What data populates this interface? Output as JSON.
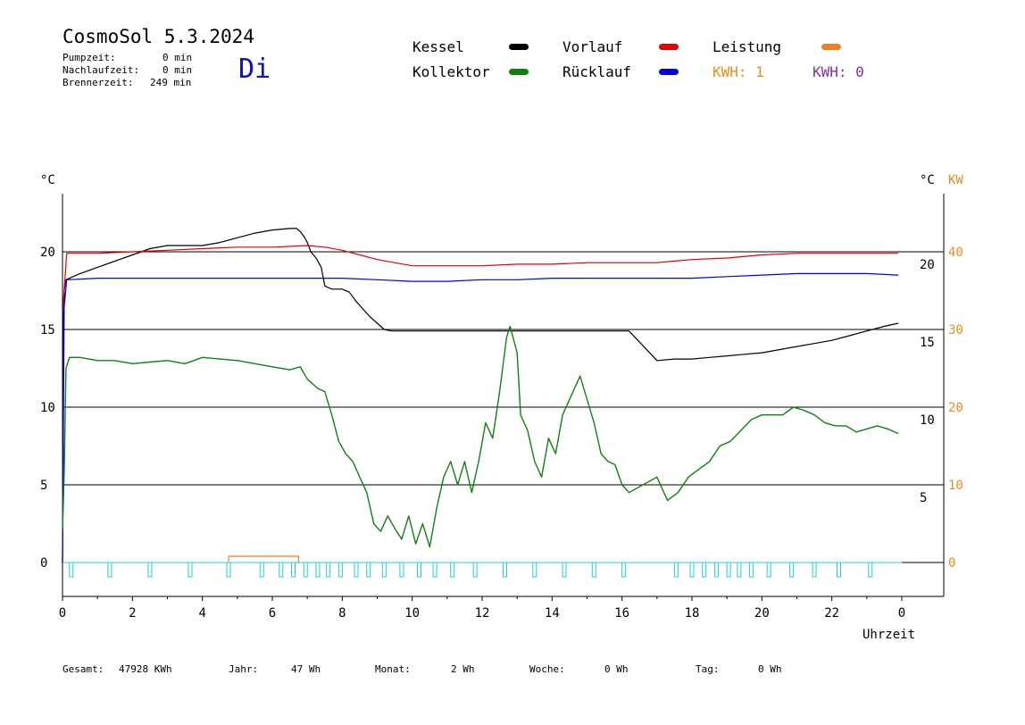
{
  "header": {
    "title": "CosmoSol 5.3.2024",
    "stats": [
      {
        "label": "Pumpzeit:",
        "value": "0 min"
      },
      {
        "label": "Nachlaufzeit:",
        "value": "0 min"
      },
      {
        "label": "Brennerzeit:",
        "value": "249 min"
      }
    ],
    "day": "Di"
  },
  "legend": {
    "kessel": {
      "label": "Kessel",
      "color": "#000000"
    },
    "vorlauf": {
      "label": "Vorlauf",
      "color": "#e00000"
    },
    "leistung": {
      "label": "Leistung",
      "color": "#f08020"
    },
    "kollektor": {
      "label": "Kollektor",
      "color": "#108010"
    },
    "ruecklauf": {
      "label": "Rücklauf",
      "color": "#0000e0"
    },
    "kwh1": {
      "label": "KWH: 1",
      "color": "#e09020"
    },
    "kwh2": {
      "label": "KWH: 0",
      "color": "#8030a0"
    }
  },
  "footer": [
    {
      "label": "Gesamt:",
      "value": "47928 KWh"
    },
    {
      "label": "Jahr:",
      "value": "47 Wh"
    },
    {
      "label": "Monat:",
      "value": "2 Wh"
    },
    {
      "label": "Woche:",
      "value": "0 Wh"
    },
    {
      "label": "Tag:",
      "value": "0 Wh"
    }
  ],
  "chart_data": {
    "type": "line",
    "xlabel": "Uhrzeit",
    "ylabel_left": "°C",
    "ylabel_right": "°C",
    "ylabel_right2": "KW",
    "x_ticks": [
      "0",
      "2",
      "4",
      "6",
      "8",
      "10",
      "12",
      "14",
      "16",
      "18",
      "20",
      "22",
      "0"
    ],
    "xlim": [
      0,
      24
    ],
    "ylim": [
      -2,
      24
    ],
    "y_ticks_left": [
      "0",
      "5",
      "10",
      "15",
      "20"
    ],
    "y_ticks_right_temp": [
      "5",
      "10",
      "15",
      "20"
    ],
    "y_ticks_right_kw": [
      "0",
      "10",
      "20",
      "30",
      "40"
    ],
    "grid": "horizontal",
    "series": [
      {
        "name": "Kessel",
        "color": "#000000",
        "points": [
          [
            0,
            0
          ],
          [
            0.05,
            17.5
          ],
          [
            0.1,
            18.2
          ],
          [
            0.5,
            18.6
          ],
          [
            1,
            19.0
          ],
          [
            1.5,
            19.4
          ],
          [
            2,
            19.8
          ],
          [
            2.5,
            20.2
          ],
          [
            3,
            20.4
          ],
          [
            3.5,
            20.4
          ],
          [
            4,
            20.4
          ],
          [
            4.5,
            20.6
          ],
          [
            5,
            20.9
          ],
          [
            5.5,
            21.2
          ],
          [
            6,
            21.4
          ],
          [
            6.5,
            21.5
          ],
          [
            6.7,
            21.5
          ],
          [
            6.8,
            21.3
          ],
          [
            6.9,
            21.0
          ],
          [
            7.0,
            20.6
          ],
          [
            7.1,
            20.0
          ],
          [
            7.25,
            19.6
          ],
          [
            7.4,
            19.0
          ],
          [
            7.5,
            17.8
          ],
          [
            7.7,
            17.6
          ],
          [
            8.0,
            17.6
          ],
          [
            8.2,
            17.4
          ],
          [
            8.4,
            16.8
          ],
          [
            8.6,
            16.3
          ],
          [
            8.8,
            15.8
          ],
          [
            9.0,
            15.4
          ],
          [
            9.2,
            15.0
          ],
          [
            9.4,
            14.9
          ],
          [
            10,
            14.9
          ],
          [
            11,
            14.9
          ],
          [
            12,
            14.9
          ],
          [
            13,
            14.9
          ],
          [
            14,
            14.9
          ],
          [
            15,
            14.9
          ],
          [
            16,
            14.9
          ],
          [
            16.2,
            14.9
          ],
          [
            17.0,
            13.0
          ],
          [
            17.5,
            13.1
          ],
          [
            18,
            13.1
          ],
          [
            18.5,
            13.2
          ],
          [
            19,
            13.3
          ],
          [
            19.5,
            13.4
          ],
          [
            20,
            13.5
          ],
          [
            20.5,
            13.7
          ],
          [
            21,
            13.9
          ],
          [
            21.5,
            14.1
          ],
          [
            22,
            14.3
          ],
          [
            22.5,
            14.6
          ],
          [
            23,
            14.9
          ],
          [
            23.5,
            15.2
          ],
          [
            23.9,
            15.4
          ]
        ]
      },
      {
        "name": "Vorlauf",
        "color": "#e00000",
        "points": [
          [
            0,
            0
          ],
          [
            0.03,
            17.0
          ],
          [
            0.12,
            19.9
          ],
          [
            1,
            19.9
          ],
          [
            2,
            20.0
          ],
          [
            3,
            20.1
          ],
          [
            4,
            20.2
          ],
          [
            5,
            20.3
          ],
          [
            6,
            20.3
          ],
          [
            7,
            20.4
          ],
          [
            7.5,
            20.3
          ],
          [
            8,
            20.1
          ],
          [
            8.5,
            19.8
          ],
          [
            9,
            19.5
          ],
          [
            9.5,
            19.3
          ],
          [
            10,
            19.1
          ],
          [
            10.5,
            19.1
          ],
          [
            11,
            19.1
          ],
          [
            12,
            19.1
          ],
          [
            13,
            19.2
          ],
          [
            14,
            19.2
          ],
          [
            15,
            19.3
          ],
          [
            16,
            19.3
          ],
          [
            17,
            19.3
          ],
          [
            17.5,
            19.4
          ],
          [
            18,
            19.5
          ],
          [
            19,
            19.6
          ],
          [
            20,
            19.8
          ],
          [
            21,
            19.9
          ],
          [
            22,
            19.9
          ],
          [
            23,
            19.9
          ],
          [
            23.9,
            19.9
          ]
        ]
      },
      {
        "name": "Rücklauf",
        "color": "#0000e0",
        "points": [
          [
            0,
            0
          ],
          [
            0.03,
            16.0
          ],
          [
            0.12,
            18.2
          ],
          [
            1,
            18.3
          ],
          [
            2,
            18.3
          ],
          [
            3,
            18.3
          ],
          [
            4,
            18.3
          ],
          [
            5,
            18.3
          ],
          [
            6,
            18.3
          ],
          [
            7,
            18.3
          ],
          [
            8,
            18.3
          ],
          [
            9,
            18.2
          ],
          [
            10,
            18.1
          ],
          [
            11,
            18.1
          ],
          [
            12,
            18.2
          ],
          [
            13,
            18.2
          ],
          [
            14,
            18.3
          ],
          [
            15,
            18.3
          ],
          [
            16,
            18.3
          ],
          [
            17,
            18.3
          ],
          [
            18,
            18.3
          ],
          [
            19,
            18.4
          ],
          [
            20,
            18.5
          ],
          [
            21,
            18.6
          ],
          [
            22,
            18.6
          ],
          [
            23,
            18.6
          ],
          [
            23.9,
            18.5
          ]
        ]
      },
      {
        "name": "Kollektor",
        "color": "#108010",
        "points": [
          [
            0,
            2
          ],
          [
            0.05,
            6
          ],
          [
            0.1,
            12.5
          ],
          [
            0.2,
            13.2
          ],
          [
            0.5,
            13.2
          ],
          [
            1,
            13.0
          ],
          [
            1.5,
            13.0
          ],
          [
            2,
            12.8
          ],
          [
            2.5,
            12.9
          ],
          [
            3,
            13.0
          ],
          [
            3.5,
            12.8
          ],
          [
            4,
            13.2
          ],
          [
            4.5,
            13.1
          ],
          [
            5,
            13.0
          ],
          [
            5.5,
            12.8
          ],
          [
            6,
            12.6
          ],
          [
            6.5,
            12.4
          ],
          [
            6.8,
            12.6
          ],
          [
            7.0,
            11.8
          ],
          [
            7.3,
            11.2
          ],
          [
            7.5,
            11.0
          ],
          [
            7.7,
            9.5
          ],
          [
            7.9,
            7.8
          ],
          [
            8.1,
            7.0
          ],
          [
            8.3,
            6.5
          ],
          [
            8.5,
            5.5
          ],
          [
            8.7,
            4.5
          ],
          [
            8.9,
            2.5
          ],
          [
            9.1,
            2.0
          ],
          [
            9.3,
            3.0
          ],
          [
            9.5,
            2.2
          ],
          [
            9.7,
            1.5
          ],
          [
            9.9,
            3.0
          ],
          [
            10.1,
            1.2
          ],
          [
            10.3,
            2.5
          ],
          [
            10.5,
            1.0
          ],
          [
            10.7,
            3.5
          ],
          [
            10.9,
            5.5
          ],
          [
            11.1,
            6.5
          ],
          [
            11.3,
            5.0
          ],
          [
            11.5,
            6.5
          ],
          [
            11.7,
            4.5
          ],
          [
            11.9,
            6.5
          ],
          [
            12.1,
            9.0
          ],
          [
            12.3,
            8.0
          ],
          [
            12.5,
            11.0
          ],
          [
            12.7,
            14.5
          ],
          [
            12.8,
            15.2
          ],
          [
            13.0,
            13.5
          ],
          [
            13.1,
            9.5
          ],
          [
            13.3,
            8.5
          ],
          [
            13.5,
            6.5
          ],
          [
            13.7,
            5.5
          ],
          [
            13.9,
            8.0
          ],
          [
            14.1,
            7.0
          ],
          [
            14.3,
            9.5
          ],
          [
            14.5,
            10.5
          ],
          [
            14.8,
            12.0
          ],
          [
            15.0,
            10.5
          ],
          [
            15.2,
            9.0
          ],
          [
            15.4,
            7.0
          ],
          [
            15.6,
            6.5
          ],
          [
            15.8,
            6.3
          ],
          [
            16.0,
            5.0
          ],
          [
            16.2,
            4.5
          ],
          [
            17.0,
            5.5
          ],
          [
            17.3,
            4.0
          ],
          [
            17.6,
            4.5
          ],
          [
            17.9,
            5.5
          ],
          [
            18.2,
            6.0
          ],
          [
            18.5,
            6.5
          ],
          [
            18.8,
            7.5
          ],
          [
            19.1,
            7.8
          ],
          [
            19.4,
            8.5
          ],
          [
            19.7,
            9.2
          ],
          [
            20.0,
            9.5
          ],
          [
            20.3,
            9.5
          ],
          [
            20.6,
            9.5
          ],
          [
            20.9,
            10.0
          ],
          [
            21.2,
            9.8
          ],
          [
            21.5,
            9.5
          ],
          [
            21.8,
            9.0
          ],
          [
            22.1,
            8.8
          ],
          [
            22.4,
            8.8
          ],
          [
            22.7,
            8.4
          ],
          [
            23.0,
            8.6
          ],
          [
            23.3,
            8.8
          ],
          [
            23.6,
            8.6
          ],
          [
            23.9,
            8.3
          ]
        ]
      }
    ],
    "brenner_pulses_hours": [
      0.25,
      1.35,
      2.5,
      3.65,
      4.75,
      5.7,
      6.25,
      6.6,
      6.95,
      7.3,
      7.6,
      7.95,
      8.4,
      8.75,
      9.2,
      9.7,
      10.2,
      10.65,
      11.15,
      11.8,
      12.65,
      13.5,
      14.35,
      15.2,
      16.05,
      17.55,
      18.0,
      18.35,
      18.7,
      19.05,
      19.35,
      19.7,
      20.2,
      20.85,
      21.5,
      22.2,
      23.1
    ],
    "leistung_block_hours": [
      4.75,
      6.75
    ]
  }
}
